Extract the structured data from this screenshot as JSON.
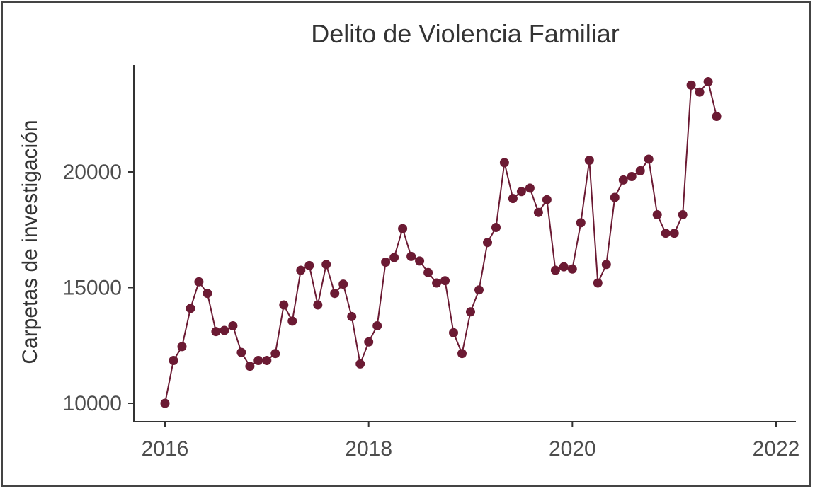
{
  "chart_data": {
    "type": "line",
    "title": "Delito de Violencia Familiar",
    "xlabel": "",
    "ylabel": "Carpetas de investigación",
    "x_ticks": [
      "2016",
      "2018",
      "2020",
      "2022"
    ],
    "y_ticks": [
      "10000",
      "15000",
      "20000"
    ],
    "xlim": [
      "2016-01",
      "2022-01"
    ],
    "ylim": [
      10000,
      24000
    ],
    "grid": false,
    "legend": "none",
    "color": "#6b1a33",
    "x": [
      "2016-01",
      "2016-02",
      "2016-03",
      "2016-04",
      "2016-05",
      "2016-06",
      "2016-07",
      "2016-08",
      "2016-09",
      "2016-10",
      "2016-11",
      "2016-12",
      "2017-01",
      "2017-02",
      "2017-03",
      "2017-04",
      "2017-05",
      "2017-06",
      "2017-07",
      "2017-08",
      "2017-09",
      "2017-10",
      "2017-11",
      "2017-12",
      "2018-01",
      "2018-02",
      "2018-03",
      "2018-04",
      "2018-05",
      "2018-06",
      "2018-07",
      "2018-08",
      "2018-09",
      "2018-10",
      "2018-11",
      "2018-12",
      "2019-01",
      "2019-02",
      "2019-03",
      "2019-04",
      "2019-05",
      "2019-06",
      "2019-07",
      "2019-08",
      "2019-09",
      "2019-10",
      "2019-11",
      "2019-12",
      "2020-01",
      "2020-02",
      "2020-03",
      "2020-04",
      "2020-05",
      "2020-06",
      "2020-07",
      "2020-08",
      "2020-09",
      "2020-10",
      "2020-11",
      "2020-12",
      "2021-01",
      "2021-02",
      "2021-03",
      "2021-04",
      "2021-05",
      "2021-06"
    ],
    "values": [
      10000,
      11850,
      12450,
      14100,
      15250,
      14750,
      13100,
      13150,
      13350,
      12200,
      11600,
      11850,
      11850,
      12150,
      14250,
      13550,
      15750,
      15950,
      14250,
      16000,
      14750,
      15150,
      13750,
      11700,
      12650,
      13350,
      16100,
      16300,
      17550,
      16350,
      16150,
      15650,
      15200,
      15300,
      13050,
      12150,
      13950,
      14900,
      16950,
      17600,
      20400,
      18850,
      19150,
      19300,
      18250,
      18800,
      15750,
      15900,
      15800,
      17800,
      20500,
      15200,
      16000,
      18900,
      19650,
      19800,
      20050,
      20550,
      18150,
      17350,
      17350,
      18150,
      23750,
      23450,
      23900,
      22400
    ]
  }
}
